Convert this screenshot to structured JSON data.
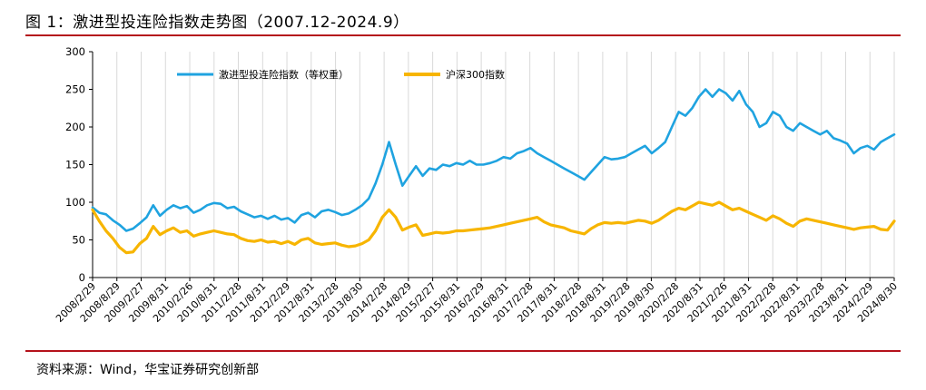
{
  "header": {
    "title": "图 1：激进型投连险指数走势图（2007.12-2024.9）"
  },
  "footer": {
    "source": "资料来源：Wind，华宝证券研究创新部"
  },
  "colors": {
    "rule": "#b5121b",
    "series_blue": "#1fa3e0",
    "series_orange": "#f7b500",
    "grid": "#d9d9d9"
  },
  "chart_data": {
    "type": "line",
    "title": "",
    "xlabel": "",
    "ylabel": "",
    "ylim": [
      0,
      300
    ],
    "yticks": [
      "0",
      "50",
      "100",
      "150",
      "200",
      "250",
      "300"
    ],
    "xticks": [
      "2008/2/29",
      "2008/8/29",
      "2009/2/27",
      "2009/8/31",
      "2010/2/26",
      "2010/8/31",
      "2011/2/28",
      "2011/8/31",
      "2012/2/29",
      "2012/8/31",
      "2013/2/28",
      "2013/8/30",
      "2014/2/28",
      "2014/8/29",
      "2015/2/27",
      "2015/8/31",
      "2016/2/29",
      "2016/8/31",
      "2017/2/28",
      "2017/8/31",
      "2018/2/28",
      "2018/8/31",
      "2019/2/28",
      "2019/8/30",
      "2020/2/28",
      "2020/8/31",
      "2021/2/26",
      "2021/8/31",
      "2022/2/28",
      "2022/8/31",
      "2023/2/28",
      "2023/8/31",
      "2024/2/29",
      "2024/8/30"
    ],
    "grid": "vertical",
    "legend": "top",
    "series": [
      {
        "name": "激进型投连险指数（等权重）",
        "color": "#1fa3e0",
        "values": [
          93,
          86,
          84,
          76,
          70,
          62,
          65,
          72,
          80,
          96,
          82,
          90,
          96,
          92,
          95,
          86,
          90,
          96,
          99,
          98,
          92,
          94,
          88,
          84,
          80,
          82,
          78,
          82,
          77,
          79,
          73,
          83,
          86,
          80,
          88,
          90,
          87,
          83,
          85,
          90,
          96,
          105,
          125,
          150,
          180,
          150,
          122,
          135,
          148,
          135,
          145,
          143,
          150,
          148,
          152,
          150,
          155,
          150,
          150,
          152,
          155,
          160,
          158,
          165,
          168,
          172,
          165,
          160,
          155,
          150,
          145,
          140,
          135,
          130,
          140,
          150,
          160,
          157,
          158,
          160,
          165,
          170,
          175,
          165,
          172,
          180,
          200,
          220,
          215,
          225,
          240,
          250,
          240,
          250,
          245,
          235,
          248,
          230,
          220,
          200,
          205,
          220,
          215,
          200,
          195,
          205,
          200,
          195,
          190,
          195,
          185,
          182,
          178,
          165,
          172,
          175,
          170,
          180,
          185,
          190
        ]
      },
      {
        "name": "沪深300指数",
        "color": "#f7b500",
        "values": [
          90,
          75,
          62,
          52,
          40,
          33,
          34,
          45,
          52,
          68,
          57,
          62,
          66,
          60,
          62,
          55,
          58,
          60,
          62,
          60,
          58,
          57,
          52,
          49,
          48,
          50,
          47,
          48,
          45,
          48,
          44,
          50,
          52,
          46,
          44,
          45,
          46,
          43,
          41,
          42,
          45,
          50,
          62,
          80,
          90,
          80,
          63,
          67,
          70,
          56,
          58,
          60,
          59,
          60,
          62,
          62,
          63,
          64,
          65,
          66,
          68,
          70,
          72,
          74,
          76,
          78,
          80,
          74,
          70,
          68,
          66,
          62,
          60,
          58,
          65,
          70,
          73,
          72,
          73,
          72,
          74,
          76,
          75,
          72,
          76,
          82,
          88,
          92,
          90,
          95,
          100,
          98,
          96,
          100,
          95,
          90,
          92,
          88,
          84,
          80,
          76,
          82,
          78,
          72,
          68,
          75,
          78,
          76,
          74,
          72,
          70,
          68,
          66,
          64,
          66,
          67,
          68,
          64,
          63,
          75
        ]
      }
    ]
  }
}
